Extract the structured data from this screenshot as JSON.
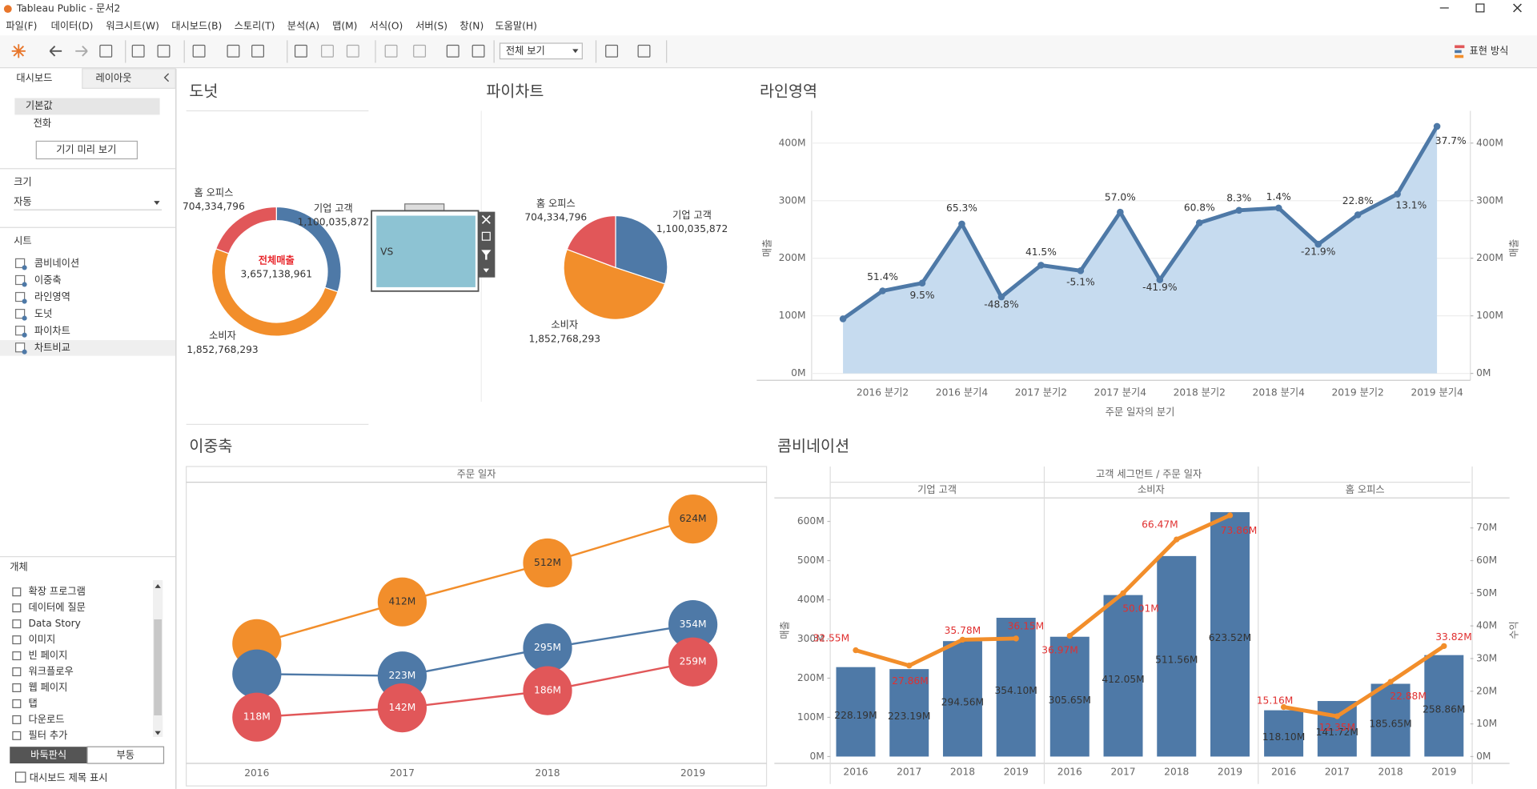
{
  "window": {
    "title": "Tableau Public - 문서2"
  },
  "menu": [
    "파일(F)",
    "데이터(D)",
    "워크시트(W)",
    "대시보드(B)",
    "스토리(T)",
    "분석(A)",
    "맵(M)",
    "서식(O)",
    "서버(S)",
    "창(N)",
    "도움말(H)"
  ],
  "toolbar": {
    "fit": "전체 보기",
    "show_me": "표현 방식"
  },
  "sidebar": {
    "tabs": [
      "대시보드",
      "레이아웃"
    ],
    "devices": [
      "기본값",
      "전화"
    ],
    "preview": "기기 미리 보기",
    "size_title": "크기",
    "size": "자동",
    "sheets_title": "시트",
    "sheets": [
      "콤비네이션",
      "이중축",
      "라인영역",
      "도넛",
      "파이차트",
      "차트비교"
    ],
    "objects_title": "개체",
    "objects": [
      "확장 프로그램",
      "데이터에 질문",
      "Data Story",
      "이미지",
      "빈 페이지",
      "워크플로우",
      "웹 페이지",
      "탭",
      "다운로드",
      "필터 추가"
    ],
    "layout_modes": [
      "바둑판식",
      "부동"
    ],
    "show_title": "대시보드 제목 표시"
  },
  "donut": {
    "type": "donut",
    "title": "도넛",
    "categories": [
      "기업 고객",
      "소비자",
      "홈 오피스"
    ],
    "values": [
      1100035872,
      1852768293,
      704334796
    ],
    "value_labels": [
      "1,100,035,872",
      "1,852,768,293",
      "704,334,796"
    ],
    "colors": [
      "#4e79a7",
      "#f28e2b",
      "#e15759"
    ],
    "center_title": "전체매출",
    "total_label": "3,657,138,961"
  },
  "vs": {
    "text": "VS"
  },
  "pie": {
    "type": "pie",
    "title": "파이차트",
    "categories": [
      "기업 고객",
      "소비자",
      "홈 오피스"
    ],
    "values": [
      1100035872,
      1852768293,
      704334796
    ],
    "value_labels": [
      "1,100,035,872",
      "1,852,768,293",
      "704,334,796"
    ],
    "colors": [
      "#4e79a7",
      "#f28e2b",
      "#e15759"
    ]
  },
  "line_area": {
    "type": "area",
    "title": "라인영역",
    "categories": [
      null,
      "2016 분기2",
      null,
      "2016 분기4",
      null,
      "2017 분기2",
      null,
      "2017 분기4",
      null,
      "2018 분기2",
      null,
      "2018 분기4",
      null,
      "2019 분기2",
      null,
      "2019 분기4"
    ],
    "values": [
      94700000,
      143300000,
      156900000,
      259400000,
      132800000,
      187900000,
      178300000,
      279900000,
      162600000,
      261500000,
      283200000,
      287200000,
      224300000,
      275400000,
      311500000,
      429000000
    ],
    "change_labels": [
      null,
      "51.4%",
      "9.5%",
      "65.3%",
      "-48.8%",
      "41.5%",
      "-5.1%",
      "57.0%",
      "-41.9%",
      "60.8%",
      "8.3%",
      "1.4%",
      "-21.9%",
      "22.8%",
      "13.1%",
      "37.7%"
    ],
    "color": "#4e79a7",
    "area_color": "#c6dbef",
    "x_label": "주문 일자의 분기",
    "y_label": "매출",
    "ylim": [
      -12000000,
      456000000
    ],
    "yticks": [
      {
        "value": 0,
        "label": "0M"
      },
      {
        "value": 100000000,
        "label": "100M"
      },
      {
        "value": 200000000,
        "label": "200M"
      },
      {
        "value": 300000000,
        "label": "300M"
      },
      {
        "value": 400000000,
        "label": "400M"
      }
    ],
    "y2lim": [
      -12000000,
      456000000
    ],
    "y2ticks": [
      {
        "value": 0,
        "label": "0M"
      },
      {
        "value": 100000000,
        "label": "100M"
      },
      {
        "value": 200000000,
        "label": "200M"
      },
      {
        "value": 300000000,
        "label": "300M"
      },
      {
        "value": 400000000,
        "label": "400M"
      }
    ],
    "grid": true
  },
  "dual_axis": {
    "type": "bubble_line",
    "title": "이중축",
    "header": "주문 일자",
    "categories": [
      "2016",
      "2017",
      "2018",
      "2019"
    ],
    "ylim": [
      0,
      715000000
    ],
    "series": [
      {
        "color": "#f28e2b",
        "values": [
          305650000,
          412050000,
          511560000,
          623520000
        ],
        "value_labels": [
          null,
          "412M",
          "512M",
          "624M"
        ]
      },
      {
        "color": "#4e79a7",
        "values": [
          228190000,
          223190000,
          294560000,
          354100000
        ],
        "value_labels": [
          null,
          "223M",
          "295M",
          "354M"
        ]
      },
      {
        "color": "#e15759",
        "values": [
          118100000,
          141720000,
          185650000,
          258860000
        ],
        "value_labels": [
          "118M",
          "142M",
          "186M",
          "259M"
        ]
      }
    ]
  },
  "combination": {
    "type": "combo",
    "title": "콤비네이션",
    "header": "고객 세그먼트 / 주문 일자",
    "panels": [
      "기업 고객",
      "소비자",
      "홈 오피스"
    ],
    "categories": [
      "2016",
      "2017",
      "2018",
      "2019",
      "2016",
      "2017",
      "2018",
      "2019",
      "2016",
      "2017",
      "2018",
      "2019"
    ],
    "y_label": "매출",
    "y2_label": "수익",
    "ylim": [
      -17500000,
      640000000
    ],
    "yticks": [
      {
        "value": 0,
        "label": "0M"
      },
      {
        "value": 100000000,
        "label": "100M"
      },
      {
        "value": 200000000,
        "label": "200M"
      },
      {
        "value": 300000000,
        "label": "300M"
      },
      {
        "value": 400000000,
        "label": "400M"
      },
      {
        "value": 500000000,
        "label": "500M"
      },
      {
        "value": 600000000,
        "label": "600M"
      }
    ],
    "y2lim": [
      -2100000,
      76800000
    ],
    "y2ticks": [
      {
        "value": 0,
        "label": "0M"
      },
      {
        "value": 10000000,
        "label": "10M"
      },
      {
        "value": 20000000,
        "label": "20M"
      },
      {
        "value": 30000000,
        "label": "30M"
      },
      {
        "value": 40000000,
        "label": "40M"
      },
      {
        "value": 50000000,
        "label": "50M"
      },
      {
        "value": 60000000,
        "label": "60M"
      },
      {
        "value": 70000000,
        "label": "70M"
      }
    ],
    "series": [
      {
        "type": "bar",
        "color": "#4e79a7",
        "values": [
          228190000,
          223190000,
          294560000,
          354100000,
          305650000,
          412050000,
          511560000,
          623520000,
          118100000,
          141720000,
          185650000,
          258860000
        ],
        "value_labels": [
          "228.19M",
          "223.19M",
          "294.56M",
          "354.10M",
          "305.65M",
          "412.05M",
          "511.56M",
          "623.52M",
          "118.10M",
          "141.72M",
          "185.65M",
          "258.86M"
        ]
      },
      {
        "type": "line",
        "axis": "y2",
        "color": "#f28e2b",
        "values": [
          32550000,
          27860000,
          35780000,
          36150000,
          36970000,
          50010000,
          66470000,
          73860000,
          15160000,
          12350000,
          22880000,
          33820000
        ],
        "value_labels": [
          "32.55M",
          "27.86M",
          "35.78M",
          "36.15M",
          "36.97M",
          "50.01M",
          "66.47M",
          "73.86M",
          "15.16M",
          "12.35M",
          "22.88M",
          "33.82M"
        ]
      }
    ]
  }
}
